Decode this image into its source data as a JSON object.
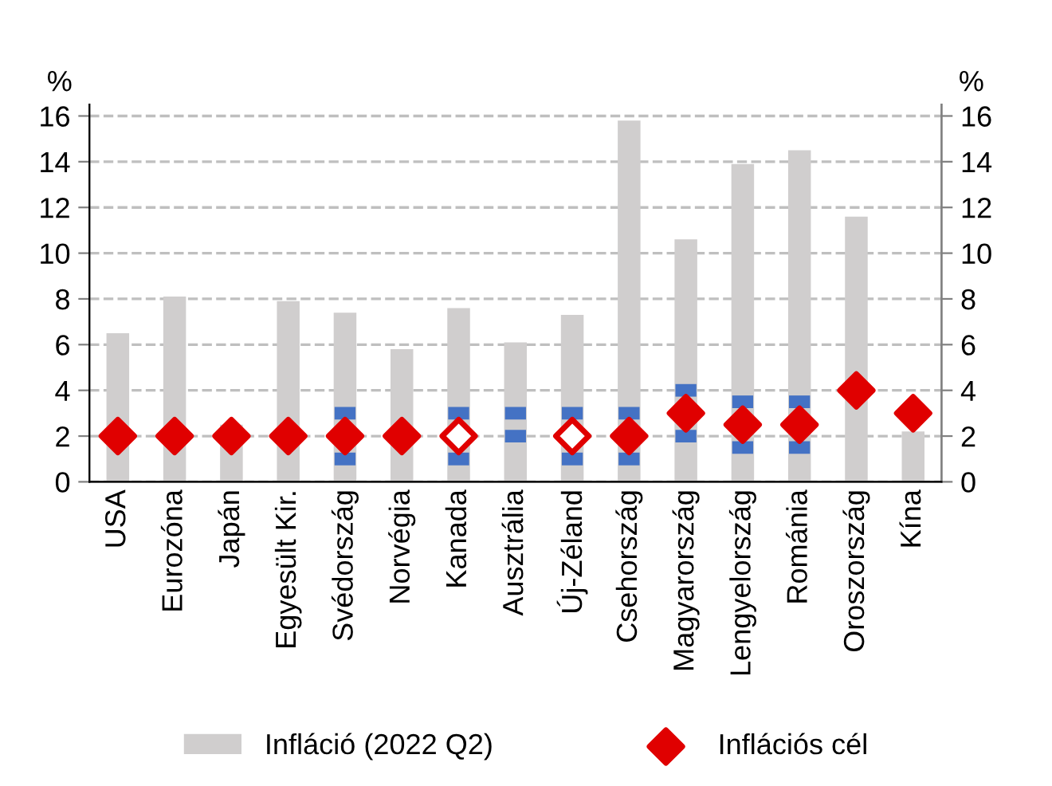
{
  "chart_data": {
    "type": "bar",
    "ylabel": "%",
    "y2label": "%",
    "categories": [
      "USA",
      "Eurozóna",
      "Japán",
      "Egyesült Kir.",
      "Svédország",
      "Norvégia",
      "Kanada",
      "Ausztrália",
      "Új-Zéland",
      "Csehország",
      "Magyarország",
      "Lengyelország",
      "Románia",
      "Oroszország",
      "Kína"
    ],
    "series": [
      {
        "name": "Infláció (2022 Q2)",
        "color": "#d0cece",
        "values": [
          6.5,
          8.1,
          2.5,
          7.9,
          7.4,
          5.8,
          7.6,
          6.1,
          7.3,
          15.8,
          10.6,
          13.9,
          14.5,
          11.6,
          2.2
        ]
      },
      {
        "type": "scatter",
        "marker": "square",
        "color": "#4472c4",
        "values": [
          null,
          null,
          null,
          null,
          3,
          null,
          3,
          3,
          3,
          3,
          4,
          3.5,
          3.5,
          null,
          null
        ]
      },
      {
        "type": "scatter",
        "marker": "square",
        "color": "#4472c4",
        "values": [
          null,
          null,
          null,
          null,
          1,
          null,
          1,
          2,
          1,
          1,
          2,
          1.5,
          1.5,
          null,
          null
        ]
      },
      {
        "name": "Inflációs cél",
        "type": "scatter",
        "marker": "diamond",
        "color": "#e00000",
        "values": [
          2,
          2,
          2,
          2,
          2,
          2,
          null,
          null,
          null,
          2,
          3,
          2.5,
          2.5,
          4,
          3
        ]
      },
      {
        "type": "scatter",
        "marker": "diamond",
        "color": "#e00000",
        "values": [
          null,
          null,
          null,
          null,
          null,
          null,
          2,
          null,
          2,
          null,
          null,
          null,
          null,
          null,
          null
        ]
      }
    ],
    "ylim": [
      0,
      16.5
    ],
    "yticks": [
      0,
      2,
      4,
      6,
      8,
      10,
      12,
      14,
      16
    ],
    "y2lim": [
      0,
      16.5
    ],
    "y2ticks": [
      0,
      2,
      4,
      6,
      8,
      10,
      12,
      14,
      16
    ],
    "grid": "y",
    "legend": "bottom"
  }
}
